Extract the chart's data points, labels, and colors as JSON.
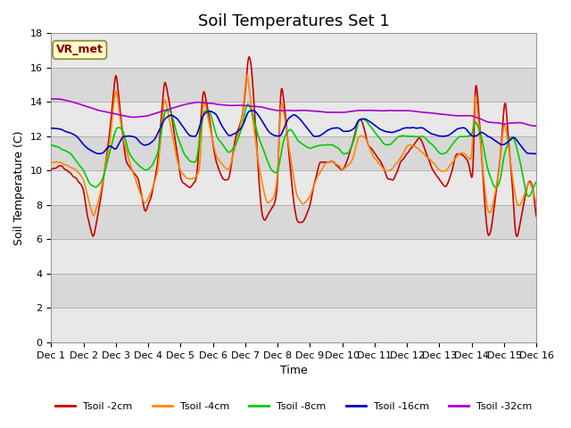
{
  "title": "Soil Temperatures Set 1",
  "xlabel": "Time",
  "ylabel": "Soil Temperature (C)",
  "annotation": "VR_met",
  "ylim": [
    0,
    18
  ],
  "yticks": [
    0,
    2,
    4,
    6,
    8,
    10,
    12,
    14,
    16,
    18
  ],
  "x_labels": [
    "Dec 1",
    "Dec 2",
    "Dec 3",
    "Dec 4",
    "Dec 5",
    "Dec 6",
    "Dec 7",
    "Dec 8",
    "Dec 9",
    "Dec 10",
    "Dec 11",
    "Dec 12",
    "Dec 13",
    "Dec 14",
    "Dec 15",
    "Dec 16"
  ],
  "colors": {
    "tsoil_2cm": "#cc0000",
    "tsoil_4cm": "#ff8800",
    "tsoil_8cm": "#00cc00",
    "tsoil_16cm": "#0000cc",
    "tsoil_32cm": "#aa00cc"
  },
  "legend_labels": [
    "Tsoil -2cm",
    "Tsoil -4cm",
    "Tsoil -8cm",
    "Tsoil -16cm",
    "Tsoil -32cm"
  ],
  "background_color": "#ffffff",
  "stripe_colors": [
    "#e8e8e8",
    "#d8d8d8"
  ],
  "title_fontsize": 13,
  "label_fontsize": 9,
  "tick_fontsize": 8,
  "n_points_per_day": 48,
  "n_days": 15
}
